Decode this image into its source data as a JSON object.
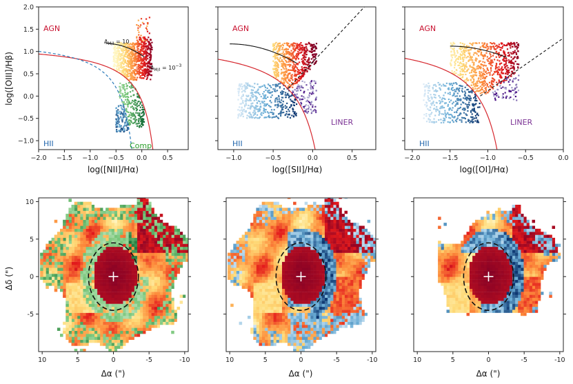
{
  "chart_data": [
    {
      "type": "scatter",
      "panel": "bpt-nii",
      "xlabel": "log([NII]/Hα)",
      "ylabel": "log([OIII]/Hβ)",
      "xlim": [
        -2.0,
        0.9
      ],
      "ylim": [
        -1.2,
        2.0
      ],
      "xticks": [
        -2.0,
        -1.5,
        -1.0,
        -0.5,
        0.0,
        0.5
      ],
      "xtick_labels": [
        "−2.0",
        "−1.5",
        "−1.0",
        "−0.5",
        "0.0",
        "0.5"
      ],
      "yticks": [
        -1.0,
        -0.5,
        0.0,
        0.5,
        1.0,
        1.5,
        2.0
      ],
      "ytick_labels": [
        "−1.0",
        "−0.5",
        "0.0",
        "0.5",
        "1.0",
        "1.5",
        "2.0"
      ],
      "region_labels": {
        "agn": "AGN",
        "hii": "HII",
        "comp": "Comp"
      },
      "region_colors": {
        "agn": "#c8102e",
        "hii": "#2166ac",
        "comp": "#2ca02c",
        "liner": "#7b3294"
      },
      "annotations": {
        "a_mlt_10": "A_M/I = 10",
        "a_mlt_1e-3": "A_M/I = 10⁻³"
      },
      "curves": [
        "Kewley 2001 (red solid)",
        "Kauffmann 2003 (blue dashed)",
        "model track (black)"
      ]
    },
    {
      "type": "scatter",
      "panel": "bpt-sii",
      "xlabel": "log([SII]/Hα)",
      "xlim": [
        -1.2,
        0.8
      ],
      "ylim": [
        -1.2,
        2.0
      ],
      "xticks": [
        -1.0,
        -0.5,
        0.0,
        0.5
      ],
      "xtick_labels": [
        "−1.0",
        "−0.5",
        "0.0",
        "0.5"
      ],
      "region_labels": {
        "agn": "AGN",
        "hii": "HII",
        "liner": "LINER"
      }
    },
    {
      "type": "scatter",
      "panel": "bpt-oi",
      "xlabel": "log([OI]/Hα)",
      "xlim": [
        -2.1,
        0.0
      ],
      "ylim": [
        -1.2,
        2.0
      ],
      "xticks": [
        -2.0,
        -1.5,
        -1.0,
        -0.5,
        0.0
      ],
      "xtick_labels": [
        "−2.0",
        "−1.5",
        "−1.0",
        "−0.5",
        "0.0"
      ],
      "region_labels": {
        "agn": "AGN",
        "hii": "HII",
        "liner": "LINER"
      }
    },
    {
      "type": "heatmap",
      "panel": "maps",
      "xlabel": "Δα (\")",
      "ylabel": "Δδ (\")",
      "xlim": [
        10.5,
        -10.5
      ],
      "ylim": [
        -10,
        10.5
      ],
      "xticks": [
        10,
        5,
        0,
        -5,
        -10
      ],
      "xtick_labels": [
        "10",
        "5",
        "0",
        "-5",
        "-10"
      ],
      "yticks": [
        10,
        5,
        0,
        -5
      ],
      "ytick_labels": [
        "10",
        "5",
        "0",
        "-5"
      ],
      "ellipse": {
        "cx": 0,
        "cy": 0,
        "rx": 3.5,
        "ry": 4.5
      }
    }
  ]
}
